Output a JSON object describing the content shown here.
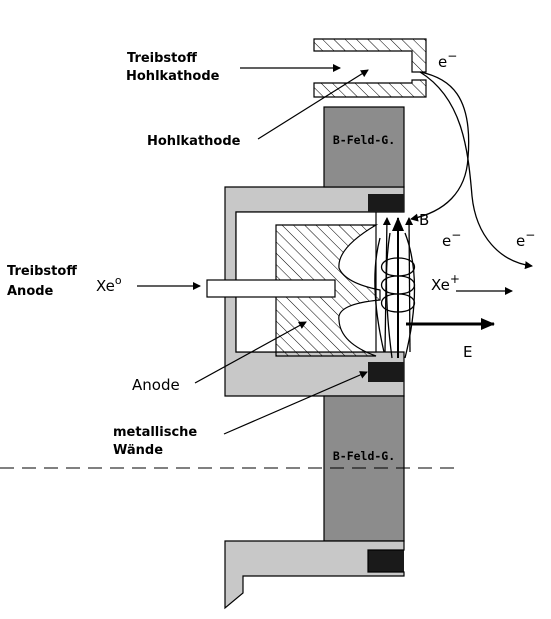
{
  "labels": {
    "treibstoff_hohlkathode_1": "Treibstoff",
    "treibstoff_hohlkathode_2": "Hohlkathode",
    "hohlkathode": "Hohlkathode",
    "bfeld_top": "B-Feld-G.",
    "bfeld_bottom": "B-Feld-G.",
    "treibstoff_anode_1": "Treibstoff",
    "treibstoff_anode_2": "Anode",
    "xe0_main": "Xe",
    "xe0_sup": "o",
    "anode": "Anode",
    "metallische_1": "metallische",
    "metallische_2": "Wände",
    "e_minus_top_main": "e",
    "e_minus_top_sup": "−",
    "b_field": "B",
    "e_minus_mid_main": "e",
    "e_minus_mid_sup": "−",
    "e_minus_right_main": "e",
    "e_minus_right_sup": "−",
    "xe_plus_main": "Xe",
    "xe_plus_sup": "+",
    "e_field": "E"
  },
  "colors": {
    "outer_body": "#c8c8c8",
    "magnet": "#8c8c8c",
    "pole": "#1a1a1a",
    "line": "#000000",
    "background": "#ffffff"
  }
}
